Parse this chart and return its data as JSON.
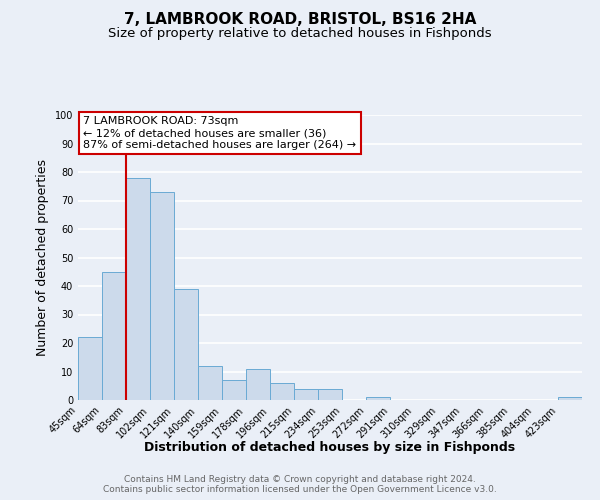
{
  "title": "7, LAMBROOK ROAD, BRISTOL, BS16 2HA",
  "subtitle": "Size of property relative to detached houses in Fishponds",
  "xlabel": "Distribution of detached houses by size in Fishponds",
  "ylabel": "Number of detached properties",
  "footer_line1": "Contains HM Land Registry data © Crown copyright and database right 2024.",
  "footer_line2": "Contains public sector information licensed under the Open Government Licence v3.0.",
  "bin_labels": [
    "45sqm",
    "64sqm",
    "83sqm",
    "102sqm",
    "121sqm",
    "140sqm",
    "159sqm",
    "178sqm",
    "196sqm",
    "215sqm",
    "234sqm",
    "253sqm",
    "272sqm",
    "291sqm",
    "310sqm",
    "329sqm",
    "347sqm",
    "366sqm",
    "385sqm",
    "404sqm",
    "423sqm"
  ],
  "bar_values": [
    22,
    45,
    78,
    73,
    39,
    12,
    7,
    11,
    6,
    4,
    4,
    0,
    1,
    0,
    0,
    0,
    0,
    0,
    0,
    0,
    1
  ],
  "bar_color": "#ccdaeb",
  "bar_edge_color": "#6aaad4",
  "vline_x": 1,
  "vline_color": "#cc0000",
  "annotation_title": "7 LAMBROOK ROAD: 73sqm",
  "annotation_line1": "← 12% of detached houses are smaller (36)",
  "annotation_line2": "87% of semi-detached houses are larger (264) →",
  "annotation_box_facecolor": "#ffffff",
  "annotation_box_edgecolor": "#cc0000",
  "ylim": [
    0,
    100
  ],
  "yticks": [
    0,
    10,
    20,
    30,
    40,
    50,
    60,
    70,
    80,
    90,
    100
  ],
  "background_color": "#eaeff7",
  "grid_color": "#ffffff",
  "title_fontsize": 11,
  "subtitle_fontsize": 9.5,
  "axis_label_fontsize": 9,
  "tick_fontsize": 7,
  "footer_fontsize": 6.5,
  "annotation_fontsize": 8
}
